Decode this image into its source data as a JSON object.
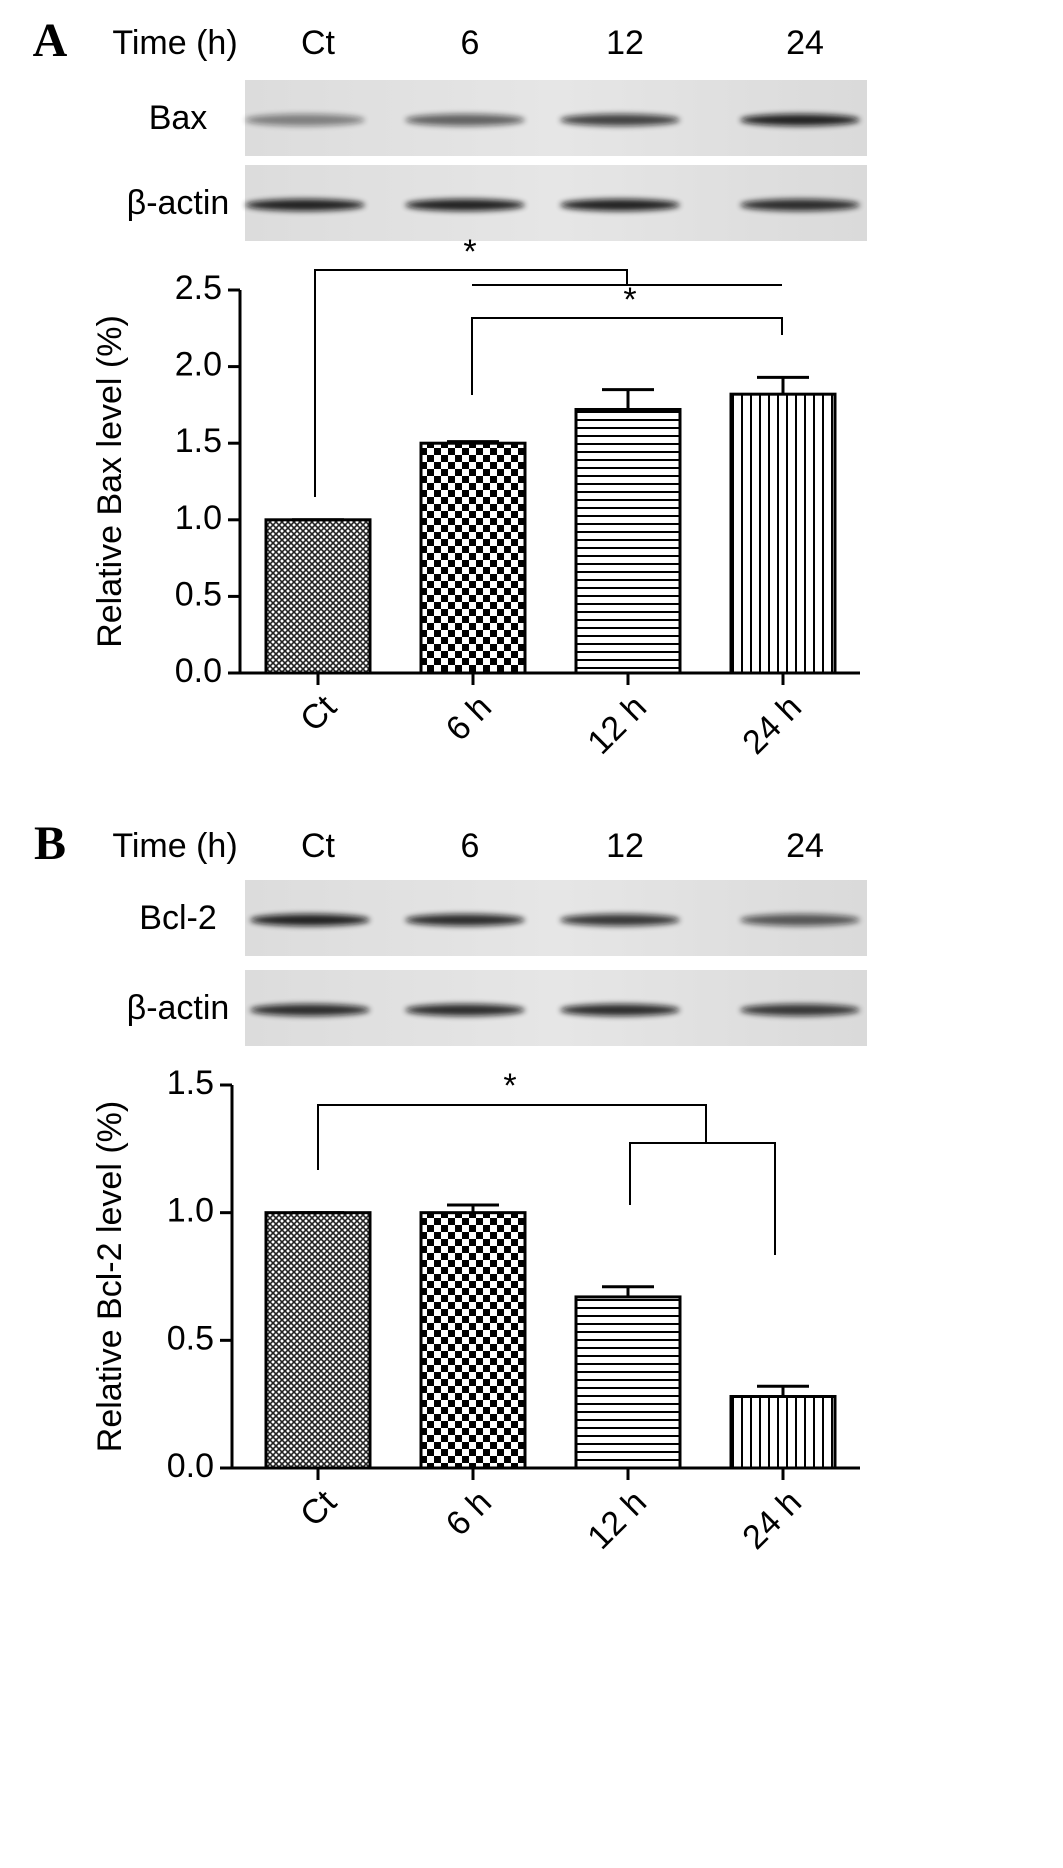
{
  "chart_data": [
    {
      "type": "bar",
      "panel_label": "A",
      "blot": {
        "header": "Time (h)",
        "lanes": [
          "Ct",
          "6",
          "12",
          "24"
        ],
        "rows": [
          "Bax",
          "β-actin"
        ]
      },
      "ylabel": "Relative Bax level (%)",
      "categories": [
        "Ct",
        "6 h",
        "12 h",
        "24 h"
      ],
      "values": [
        1.0,
        1.5,
        1.72,
        1.82
      ],
      "errors": [
        0,
        0.01,
        0.13,
        0.11
      ],
      "patterns": [
        "crosshatch",
        "checker",
        "hlines",
        "vlines"
      ],
      "color": "#000000",
      "ylim": [
        0,
        2.5
      ],
      "yticks": [
        {
          "value": 0,
          "label": "0.0"
        },
        0.5,
        {
          "value": 1,
          "label": "1.0"
        },
        1.5,
        {
          "value": 2,
          "label": "2.0"
        },
        2.5
      ],
      "significance": [
        "*",
        "*"
      ]
    },
    {
      "type": "bar",
      "panel_label": "B",
      "blot": {
        "header": "Time (h)",
        "lanes": [
          "Ct",
          "6",
          "12",
          "24"
        ],
        "rows": [
          "Bcl-2",
          "β-actin"
        ]
      },
      "ylabel": "Relative Bcl-2 level (%)",
      "categories": [
        "Ct",
        "6 h",
        "12 h",
        "24 h"
      ],
      "values": [
        1.0,
        1.0,
        0.67,
        0.28
      ],
      "errors": [
        0,
        0.03,
        0.04,
        0.04
      ],
      "patterns": [
        "crosshatch",
        "checker",
        "hlines",
        "vlines"
      ],
      "color": "#000000",
      "ylim": [
        0,
        1.5
      ],
      "yticks": [
        {
          "value": 0,
          "label": "0.0"
        },
        0.5,
        {
          "value": 1,
          "label": "1.0"
        },
        1.5
      ],
      "significance": [
        "*"
      ]
    }
  ]
}
